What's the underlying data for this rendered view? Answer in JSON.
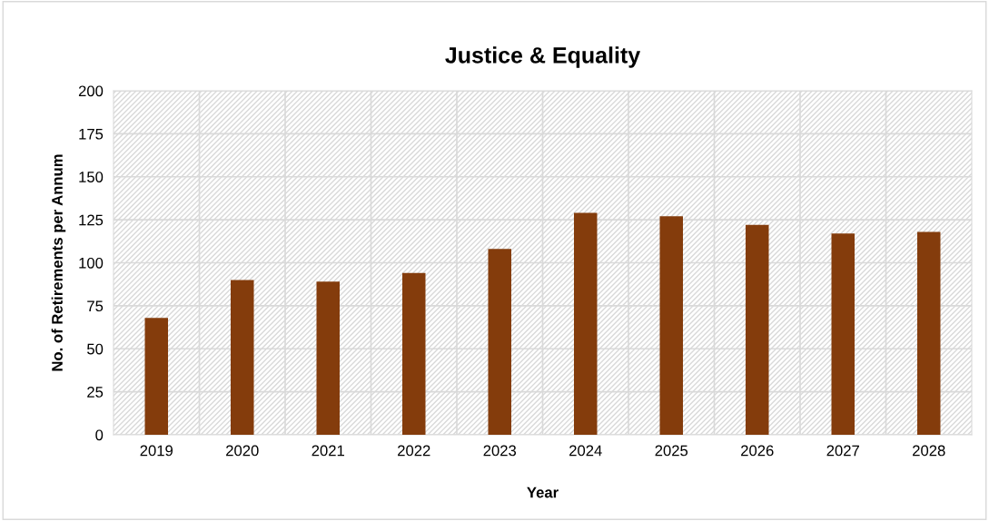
{
  "chart_data": {
    "type": "bar",
    "title": "Justice & Equality",
    "xlabel": "Year",
    "ylabel": "No. of Retirements per Annum",
    "categories": [
      "2019",
      "2020",
      "2021",
      "2022",
      "2023",
      "2024",
      "2025",
      "2026",
      "2027",
      "2028"
    ],
    "values": [
      68,
      90,
      89,
      94,
      108,
      129,
      127,
      122,
      117,
      118
    ],
    "color": "#843c0c",
    "ylim": [
      0,
      200
    ],
    "yticks": [
      0,
      25,
      50,
      75,
      100,
      125,
      150,
      175,
      200
    ],
    "grid": true,
    "legend": false
  }
}
